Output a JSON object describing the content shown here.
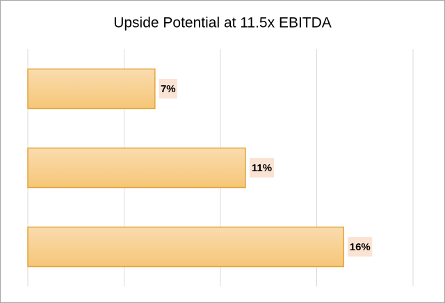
{
  "chart_data": {
    "type": "bar",
    "orientation": "horizontal",
    "title": "Upside Potential at 11.5x EBITDA",
    "categories": [
      null,
      null,
      null
    ],
    "values": [
      6.6,
      11.3,
      16.4
    ],
    "value_labels": [
      "7%",
      "11%",
      "16%"
    ],
    "color": "#f7cd8b",
    "xlim": [
      0,
      20
    ],
    "xticks": [
      0,
      5,
      10,
      15,
      20
    ],
    "grid": true
  }
}
